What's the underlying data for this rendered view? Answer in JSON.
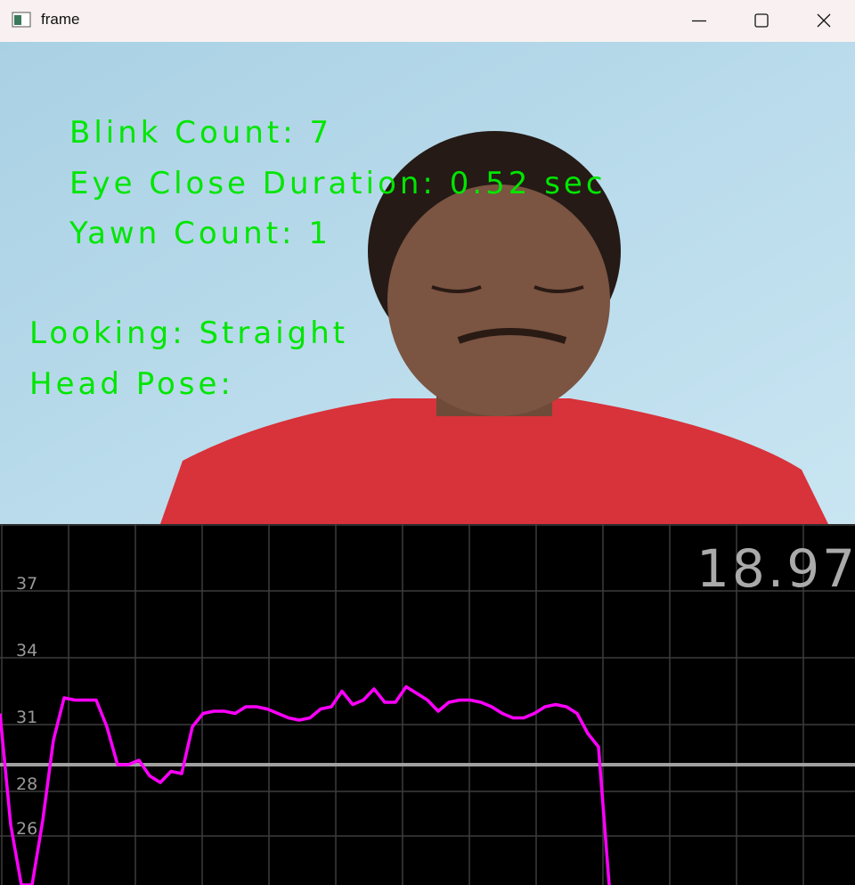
{
  "window": {
    "title": "frame"
  },
  "overlay": {
    "lines": [
      "Blink Count: 7",
      "Eye Close Duration: 0.52 sec",
      "Yawn Count: 1",
      "Looking: Straight",
      "Head Pose:"
    ]
  },
  "chart_data": {
    "type": "line",
    "readout": 18.97,
    "series": [
      {
        "color": "#ff00ff",
        "values": [
          31.5,
          26.5,
          23.8,
          23.8,
          26.7,
          30.3,
          32.2,
          32.1,
          32.1,
          32.1,
          30.9,
          29.2,
          29.2,
          29.4,
          28.7,
          28.4,
          28.9,
          28.8,
          30.9,
          31.5,
          31.6,
          31.6,
          31.5,
          31.8,
          31.8,
          31.7,
          31.5,
          31.3,
          31.2,
          31.3,
          31.7,
          31.8,
          32.5,
          31.9,
          32.1,
          32.6,
          32.0,
          32.0,
          32.7,
          32.4,
          32.1,
          31.6,
          32.0,
          32.1,
          32.1,
          32.0,
          31.8,
          31.5,
          31.3,
          31.3,
          31.5,
          31.8,
          31.9,
          31.8,
          31.5,
          30.6,
          30.0,
          23.8
        ]
      }
    ],
    "threshold": {
      "value": 29.2,
      "color": "#a0a0a0"
    },
    "ylim": [
      23.8,
      40
    ],
    "yticks": [
      37,
      34,
      31,
      28,
      26
    ],
    "grid": true
  }
}
